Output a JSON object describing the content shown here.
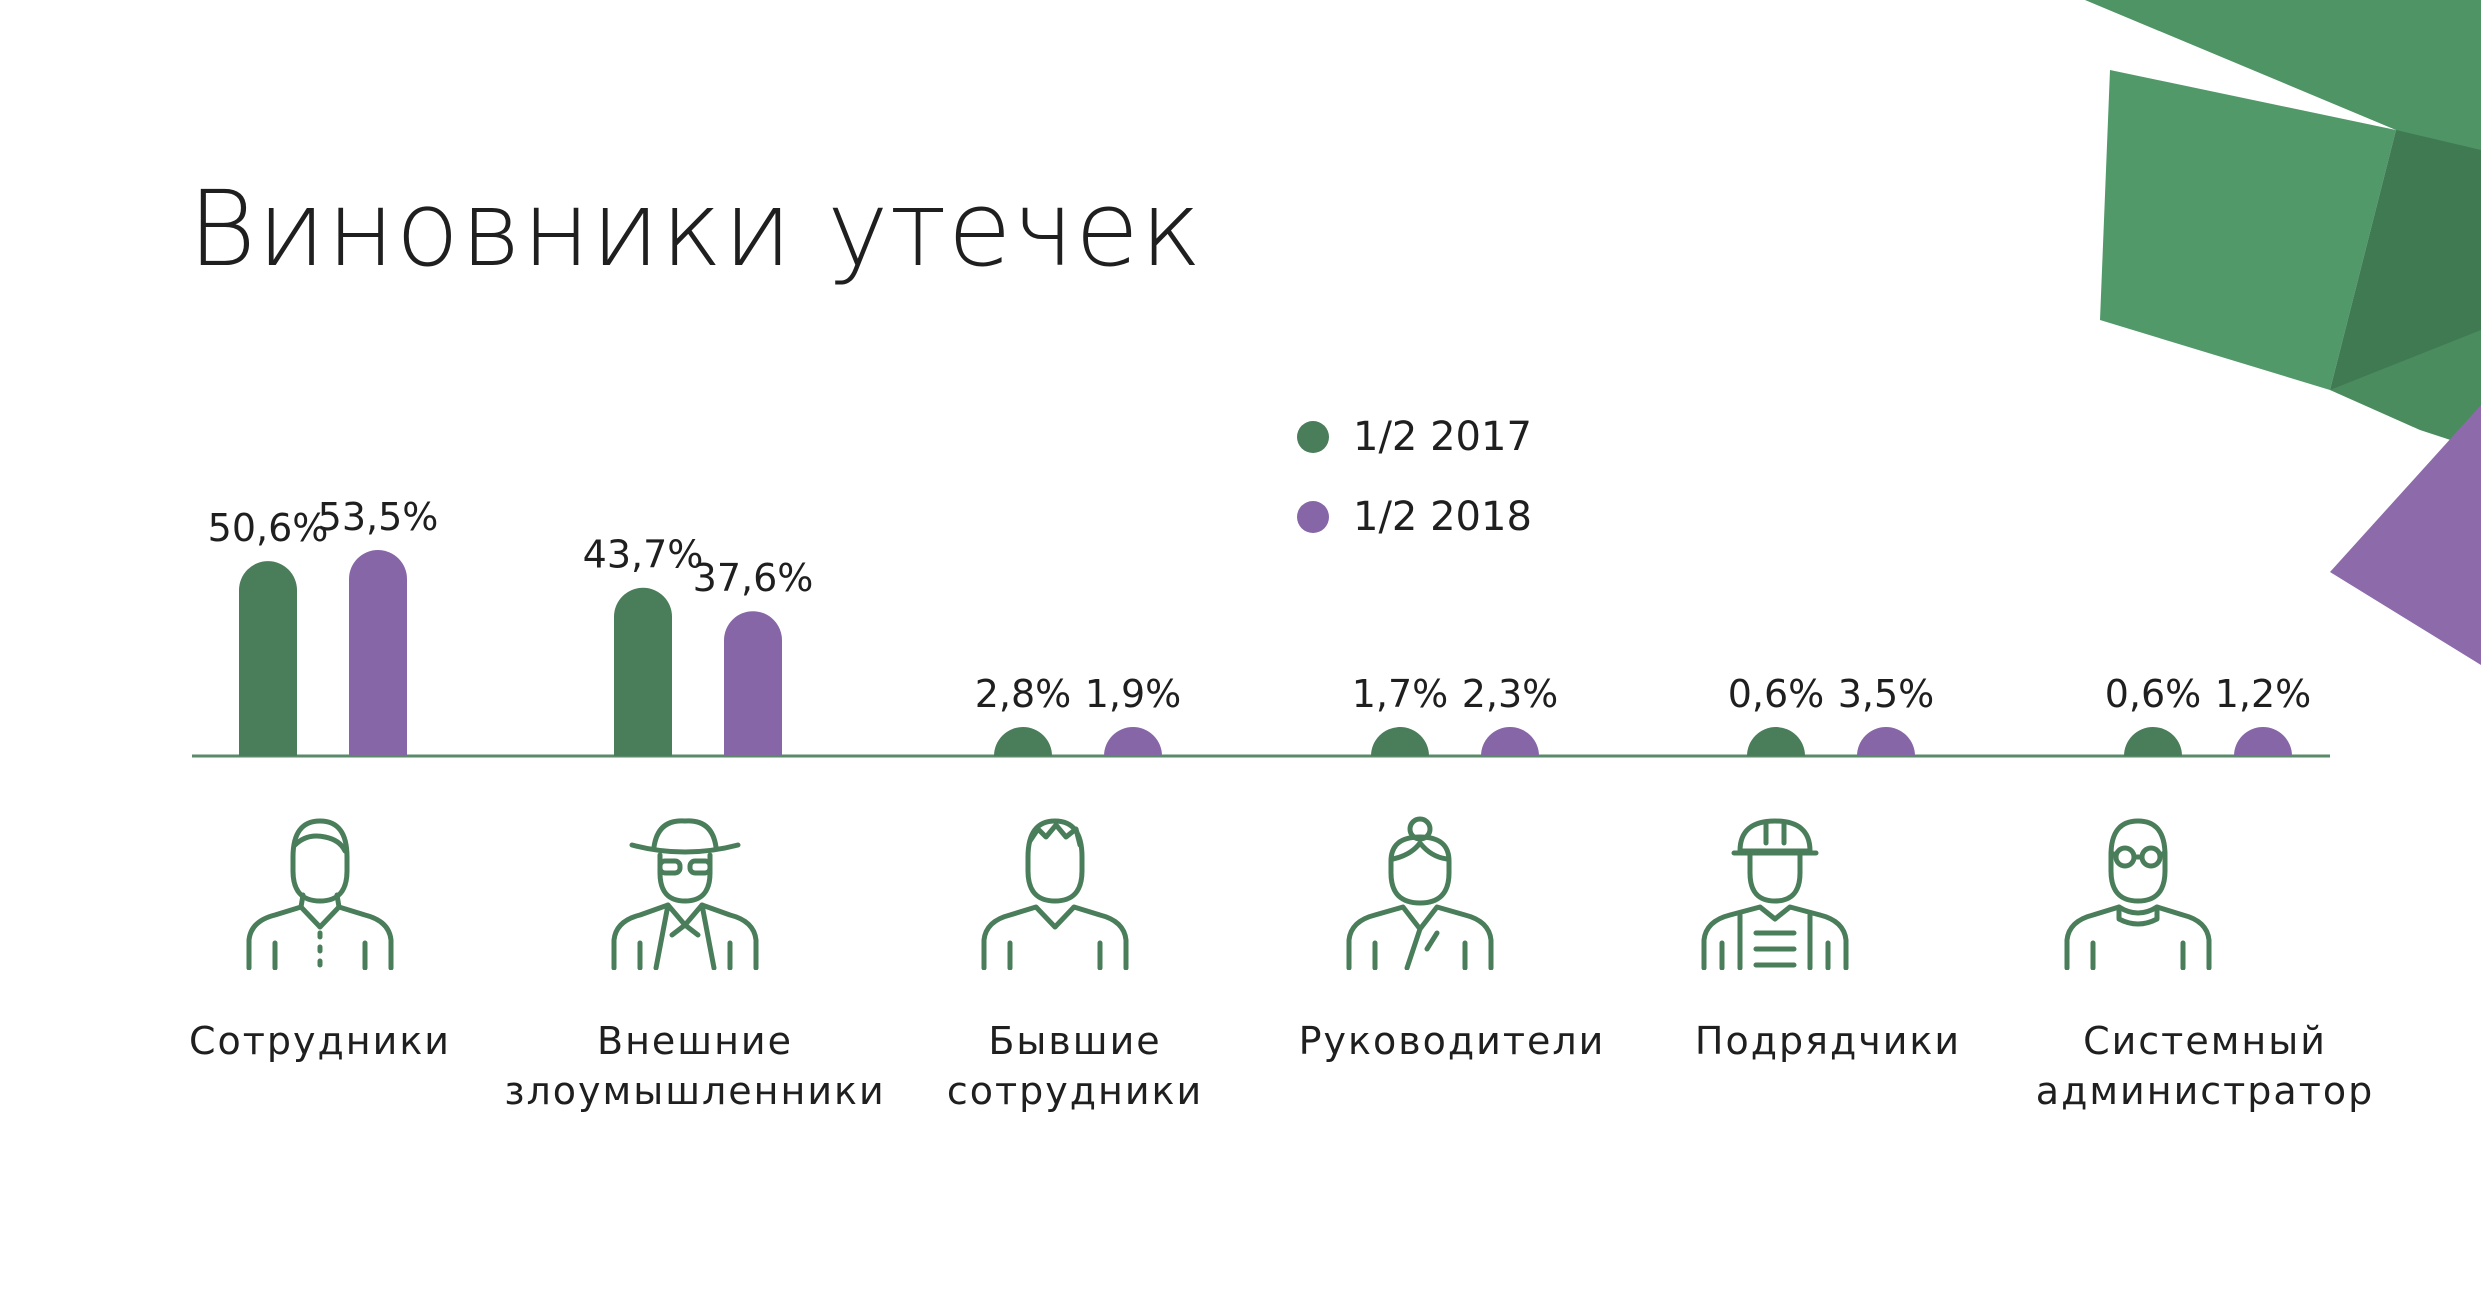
{
  "title": "Виновники утечек",
  "colors": {
    "series_2017": "#4a7d5a",
    "series_2018": "#8766a8",
    "deco_green": "#4e9464",
    "deco_green_dark": "#3f7a52",
    "deco_purple": "#8d6aaa",
    "icon_stroke": "#4a7d5a",
    "baseline": "#5a8a6a"
  },
  "chart_data": {
    "type": "bar",
    "categories": [
      "Сотрудники",
      "Внешние злоумышленники",
      "Бывшие сотрудники",
      "Руководители",
      "Подрядчики",
      "Системный администратор"
    ],
    "series": [
      {
        "name": "1/2 2017",
        "values": [
          50.6,
          43.7,
          2.8,
          1.7,
          0.6,
          0.6
        ]
      },
      {
        "name": "1/2 2018",
        "values": [
          53.5,
          37.6,
          1.9,
          2.3,
          3.5,
          1.2
        ]
      }
    ],
    "data_labels": [
      [
        "50,6%",
        "43,7%",
        "2,8%",
        "1,7%",
        "0,6%",
        "0,6%"
      ],
      [
        "53,5%",
        "37,6%",
        "1,9%",
        "2,3%",
        "3,5%",
        "1,2%"
      ]
    ],
    "legend_position": "top-center",
    "grid": false,
    "ylim": [
      0,
      60
    ],
    "xlabel": "",
    "ylabel": ""
  },
  "categories_display": [
    {
      "line1": "Сотрудники",
      "line2": "",
      "icon": "employee-icon"
    },
    {
      "line1": "Внешние",
      "line2": "злоумышленники",
      "icon": "intruder-icon"
    },
    {
      "line1": "Бывшие",
      "line2": "сотрудники",
      "icon": "former-employee-icon"
    },
    {
      "line1": "Руководители",
      "line2": "",
      "icon": "manager-icon"
    },
    {
      "line1": "Подрядчики",
      "line2": "",
      "icon": "contractor-icon"
    },
    {
      "line1": "Системный",
      "line2": "администратор",
      "icon": "sysadmin-icon"
    }
  ],
  "legend": [
    {
      "label": "1/2 2017"
    },
    {
      "label": "1/2 2018"
    }
  ]
}
